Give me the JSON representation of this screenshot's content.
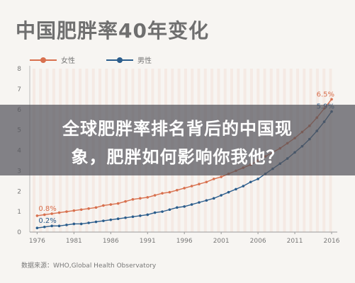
{
  "header": {
    "title": "中国肥胖率40年变化"
  },
  "banner": {
    "line1": "全球肥胖率排名背后的中国现",
    "line2": "象，肥胖如何影响你我他？"
  },
  "source": "数据来源：WHO,Global Health Observatory",
  "colors": {
    "female": "#d8704e",
    "male": "#2b5d8c"
  },
  "chart_data": {
    "type": "line",
    "title": "中国肥胖率40年变化",
    "xlim": [
      1975,
      2016
    ],
    "ylim": [
      0,
      8
    ],
    "x_ticks": [
      1976,
      1981,
      1986,
      1991,
      1996,
      2001,
      2006,
      2011,
      2016
    ],
    "y_ticks": [
      0,
      1,
      2,
      3,
      4,
      5,
      6,
      7,
      8
    ],
    "grid": false,
    "legend_position": "top-left",
    "series": [
      {
        "name": "女性",
        "color": "#d8704e",
        "x": [
          1976,
          1977,
          1978,
          1979,
          1980,
          1981,
          1982,
          1983,
          1984,
          1985,
          1986,
          1987,
          1988,
          1989,
          1990,
          1991,
          1992,
          1993,
          1994,
          1995,
          1996,
          1997,
          1998,
          1999,
          2000,
          2001,
          2002,
          2003,
          2004,
          2005,
          2006,
          2007,
          2008,
          2009,
          2010,
          2011,
          2012,
          2013,
          2014,
          2015,
          2016
        ],
        "values": [
          0.8,
          0.85,
          0.9,
          0.95,
          1.0,
          1.05,
          1.1,
          1.15,
          1.2,
          1.3,
          1.35,
          1.4,
          1.5,
          1.6,
          1.65,
          1.7,
          1.8,
          1.9,
          1.95,
          2.05,
          2.15,
          2.25,
          2.35,
          2.45,
          2.6,
          2.7,
          2.85,
          3.0,
          3.15,
          3.3,
          3.5,
          3.7,
          3.9,
          4.1,
          4.35,
          4.6,
          4.9,
          5.2,
          5.6,
          6.05,
          6.5
        ],
        "first_label": "0.8%",
        "last_label": "6.5%"
      },
      {
        "name": "男性",
        "color": "#2b5d8c",
        "x": [
          1976,
          1977,
          1978,
          1979,
          1980,
          1981,
          1982,
          1983,
          1984,
          1985,
          1986,
          1987,
          1988,
          1989,
          1990,
          1991,
          1992,
          1993,
          1994,
          1995,
          1996,
          1997,
          1998,
          1999,
          2000,
          2001,
          2002,
          2003,
          2004,
          2005,
          2006,
          2007,
          2008,
          2009,
          2010,
          2011,
          2012,
          2013,
          2014,
          2015,
          2016
        ],
        "values": [
          0.2,
          0.25,
          0.3,
          0.3,
          0.35,
          0.4,
          0.4,
          0.45,
          0.5,
          0.55,
          0.6,
          0.65,
          0.7,
          0.75,
          0.8,
          0.85,
          0.95,
          1.0,
          1.1,
          1.2,
          1.25,
          1.35,
          1.45,
          1.55,
          1.65,
          1.8,
          1.95,
          2.1,
          2.25,
          2.45,
          2.6,
          2.85,
          3.1,
          3.35,
          3.6,
          3.9,
          4.2,
          4.55,
          4.95,
          5.4,
          5.9
        ],
        "first_label": "0.2%",
        "last_label": "5.9%"
      }
    ]
  }
}
